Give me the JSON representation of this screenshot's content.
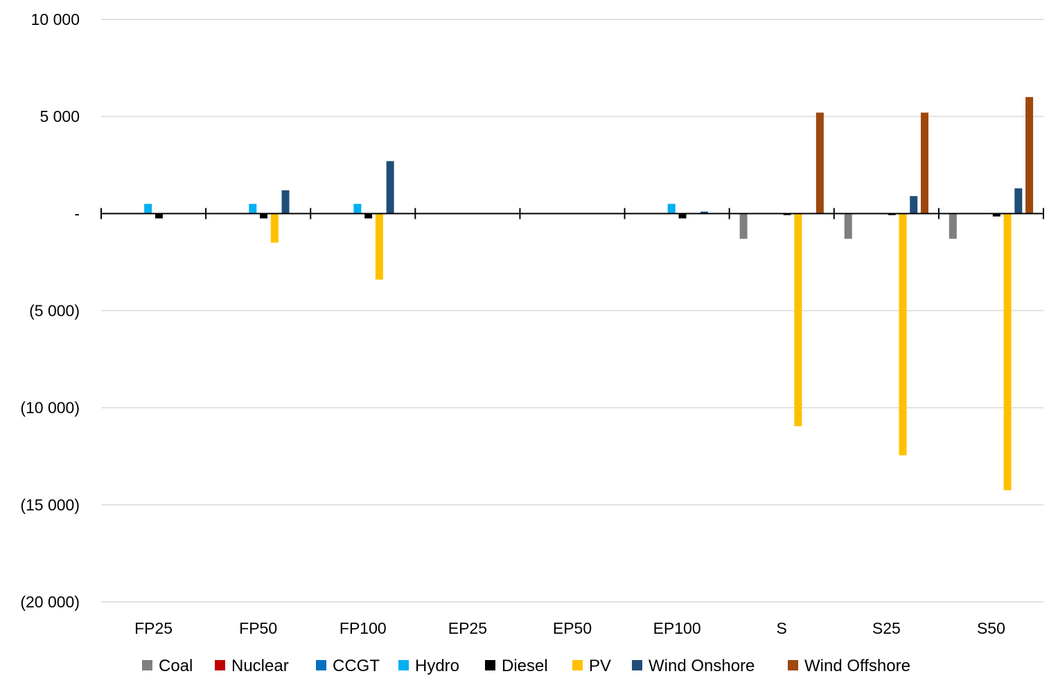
{
  "chart_data": {
    "type": "bar",
    "title": "",
    "xlabel": "",
    "ylabel": "",
    "categories": [
      "FP25",
      "FP50",
      "FP100",
      "EP25",
      "EP50",
      "EP100",
      "S",
      "S25",
      "S50"
    ],
    "y_ticks": [
      {
        "value": 10000,
        "label": "10 000"
      },
      {
        "value": 5000,
        "label": "5 000"
      },
      {
        "value": 0,
        "label": "-"
      },
      {
        "value": -5000,
        "label": "(5 000)"
      },
      {
        "value": -10000,
        "label": "(10 000)"
      },
      {
        "value": -15000,
        "label": "(15 000)"
      },
      {
        "value": -20000,
        "label": "(20 000)"
      }
    ],
    "ylim": [
      -20000,
      10000
    ],
    "grid": true,
    "legend_position": "bottom",
    "series": [
      {
        "name": "Coal",
        "color": "#7f7f7f",
        "values": [
          0,
          0,
          0,
          0,
          0,
          0,
          -1300,
          -1300,
          -1300
        ]
      },
      {
        "name": "Nuclear",
        "color": "#c00000",
        "values": [
          0,
          0,
          0,
          0,
          0,
          0,
          0,
          0,
          0
        ]
      },
      {
        "name": "CCGT",
        "color": "#0070c0",
        "values": [
          0,
          0,
          0,
          0,
          0,
          0,
          0,
          0,
          0
        ]
      },
      {
        "name": "Hydro",
        "color": "#00b0f0",
        "values": [
          500,
          500,
          500,
          0,
          0,
          500,
          0,
          0,
          0
        ]
      },
      {
        "name": "Diesel",
        "color": "#000000",
        "values": [
          -250,
          -250,
          -250,
          0,
          0,
          -250,
          -80,
          -80,
          -150
        ]
      },
      {
        "name": "PV",
        "color": "#ffc000",
        "values": [
          0,
          -1500,
          -3400,
          0,
          0,
          0,
          -10950,
          -12450,
          -14250
        ]
      },
      {
        "name": "Wind Onshore",
        "color": "#1f4e79",
        "values": [
          0,
          1200,
          2700,
          0,
          0,
          100,
          0,
          900,
          1300
        ]
      },
      {
        "name": "Wind Offshore",
        "color": "#9e480e",
        "values": [
          0,
          0,
          0,
          0,
          0,
          0,
          5200,
          5200,
          6000
        ]
      }
    ]
  }
}
